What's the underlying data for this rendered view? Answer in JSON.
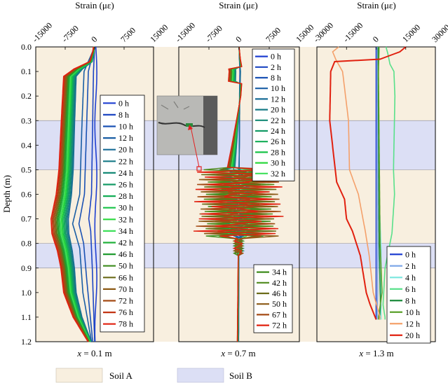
{
  "figure": {
    "ylabel": "Depth (m)",
    "y_ticks": [
      "0.0",
      "0.1",
      "0.2",
      "0.3",
      "0.4",
      "0.5",
      "0.6",
      "0.7",
      "0.8",
      "0.9",
      "1.0",
      "1.1",
      "1.2"
    ],
    "legend": {
      "soil_a": "Soil A",
      "soil_b": "Soil B"
    },
    "colors": {
      "soil_a": "#f8efdf",
      "soil_b": "#dcdff5"
    }
  },
  "chart_data": [
    {
      "type": "line",
      "title": "Strain (με)",
      "caption": "x = 0.1 m",
      "caption_var": "x",
      "caption_rest": " = 0.1 m",
      "xlabel": "Strain (με)",
      "ylabel": "Depth (m)",
      "xlim": [
        -15000,
        15000
      ],
      "ylim": [
        0,
        1.2
      ],
      "x_ticks": [
        "-15000",
        "-7500",
        "0",
        "7500",
        "15000"
      ],
      "x_tick_values": [
        -15000,
        -7500,
        0,
        7500,
        15000
      ],
      "legend_position": "right",
      "series": [
        {
          "name": "0 h",
          "color": "#1f3fd1"
        },
        {
          "name": "8 h",
          "color": "#1d46c2"
        },
        {
          "name": "10 h",
          "color": "#1b52b4"
        },
        {
          "name": "12 h",
          "color": "#1a5ea4"
        },
        {
          "name": "20 h",
          "color": "#186c96"
        },
        {
          "name": "22 h",
          "color": "#167a86"
        },
        {
          "name": "24 h",
          "color": "#158a76"
        },
        {
          "name": "26 h",
          "color": "#149b66"
        },
        {
          "name": "28 h",
          "color": "#12ad55"
        },
        {
          "name": "30 h",
          "color": "#17c347"
        },
        {
          "name": "32 h",
          "color": "#2bd83d"
        },
        {
          "name": "34 h",
          "color": "#3ee05a"
        },
        {
          "name": "42 h",
          "color": "#22b13b"
        },
        {
          "name": "46 h",
          "color": "#1f9b2f"
        },
        {
          "name": "50 h",
          "color": "#3e8c1d"
        },
        {
          "name": "66 h",
          "color": "#6b6b18"
        },
        {
          "name": "70 h",
          "color": "#8c5a16"
        },
        {
          "name": "72 h",
          "color": "#a44a14"
        },
        {
          "name": "76 h",
          "color": "#c23312"
        },
        {
          "name": "78 h",
          "color": "#e1200f"
        }
      ]
    },
    {
      "type": "line",
      "title": "Strain (με)",
      "caption": "x = 0.7 m",
      "caption_var": "x",
      "caption_rest": " = 0.7 m",
      "xlabel": "Strain (με)",
      "xlim": [
        -15000,
        15000
      ],
      "ylim": [
        0,
        1.2
      ],
      "x_ticks": [
        "-15000",
        "-7500",
        "0",
        "7500",
        "15000"
      ],
      "x_tick_values": [
        -15000,
        -7500,
        0,
        7500,
        15000
      ],
      "legend_position": "right, split upper / lower",
      "series_upper": [
        {
          "name": "0 h",
          "color": "#1f3fd1"
        },
        {
          "name": "2 h",
          "color": "#1d46c2"
        },
        {
          "name": "8 h",
          "color": "#1b52b4"
        },
        {
          "name": "10 h",
          "color": "#1a5ea4"
        },
        {
          "name": "12 h",
          "color": "#186c96"
        },
        {
          "name": "20 h",
          "color": "#167a86"
        },
        {
          "name": "22 h",
          "color": "#158a76"
        },
        {
          "name": "24 h",
          "color": "#149b66"
        },
        {
          "name": "26 h",
          "color": "#12ad55"
        },
        {
          "name": "28 h",
          "color": "#17c347"
        },
        {
          "name": "30 h",
          "color": "#2bd83d"
        },
        {
          "name": "32 h",
          "color": "#3ee05a"
        }
      ],
      "series_lower": [
        {
          "name": "34 h",
          "color": "#3e8c1d"
        },
        {
          "name": "42 h",
          "color": "#4f8a1c"
        },
        {
          "name": "46 h",
          "color": "#6b6b18"
        },
        {
          "name": "50 h",
          "color": "#8c5a16"
        },
        {
          "name": "67 h",
          "color": "#a44a14"
        },
        {
          "name": "72 h",
          "color": "#e1200f"
        }
      ]
    },
    {
      "type": "line",
      "title": "Strain (με)",
      "caption": "x = 1.3 m",
      "caption_var": "x",
      "caption_rest": " = 1.3 m",
      "xlabel": "Strain (με)",
      "xlim": [
        -30000,
        30000
      ],
      "ylim": [
        0,
        1.2
      ],
      "x_ticks": [
        "-30000",
        "-15000",
        "0",
        "15000",
        "30000"
      ],
      "x_tick_values": [
        -30000,
        -15000,
        0,
        15000,
        30000
      ],
      "legend_position": "bottom-right",
      "series": [
        {
          "name": "0 h",
          "color": "#1f3fd1"
        },
        {
          "name": "2 h",
          "color": "#7fa8e8"
        },
        {
          "name": "4 h",
          "color": "#7fe8e0"
        },
        {
          "name": "6 h",
          "color": "#58e08a"
        },
        {
          "name": "8 h",
          "color": "#1a8a3a"
        },
        {
          "name": "10 h",
          "color": "#5aa02a"
        },
        {
          "name": "12 h",
          "color": "#f4a06a"
        },
        {
          "name": "20 h",
          "color": "#e1200f"
        }
      ]
    }
  ]
}
